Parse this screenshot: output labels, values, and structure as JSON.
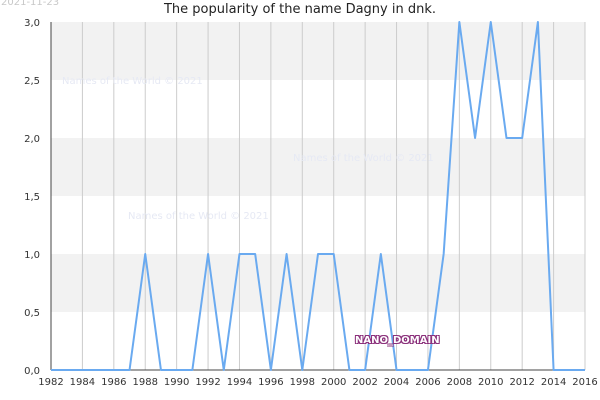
{
  "date_stamp": "2021-11-23",
  "watermark": "Names of the World © 2021",
  "tag_label": "NANO_DOMAIN",
  "colors": {
    "line": "#6aaaf0",
    "band": "#f2f2f2",
    "grid": "#cccccc",
    "axis": "#444444"
  },
  "chart_data": {
    "type": "line",
    "title": "The popularity of the name Dagny in dnk.",
    "xlabel": "",
    "ylabel": "",
    "xlim": [
      1982,
      2016
    ],
    "ylim": [
      0,
      3
    ],
    "x_ticks": [
      "1982",
      "1984",
      "1986",
      "1988",
      "1990",
      "1992",
      "1994",
      "1996",
      "1998",
      "2000",
      "2002",
      "2004",
      "2006",
      "2008",
      "2010",
      "2012",
      "2014",
      "2016"
    ],
    "y_ticks": [
      "0,0",
      "0,5",
      "1,0",
      "1,5",
      "2,0",
      "2,5",
      "3,0"
    ],
    "grid": true,
    "series": [
      {
        "x": [
          1982,
          1983,
          1984,
          1985,
          1986,
          1987,
          1988,
          1989,
          1990,
          1991,
          1992,
          1993,
          1994,
          1995,
          1996,
          1997,
          1998,
          1999,
          2000,
          2001,
          2002,
          2003,
          2004,
          2005,
          2006,
          2007,
          2008,
          2009,
          2010,
          2011,
          2012,
          2013,
          2014,
          2015,
          2016
        ],
        "values": [
          0,
          0,
          0,
          0,
          0,
          0,
          1,
          0,
          0,
          0,
          1,
          0,
          1,
          1,
          0,
          1,
          0,
          1,
          1,
          0,
          0,
          1,
          0,
          0,
          0,
          1,
          3,
          2,
          3,
          2,
          2,
          3,
          0,
          0,
          0
        ]
      }
    ]
  }
}
